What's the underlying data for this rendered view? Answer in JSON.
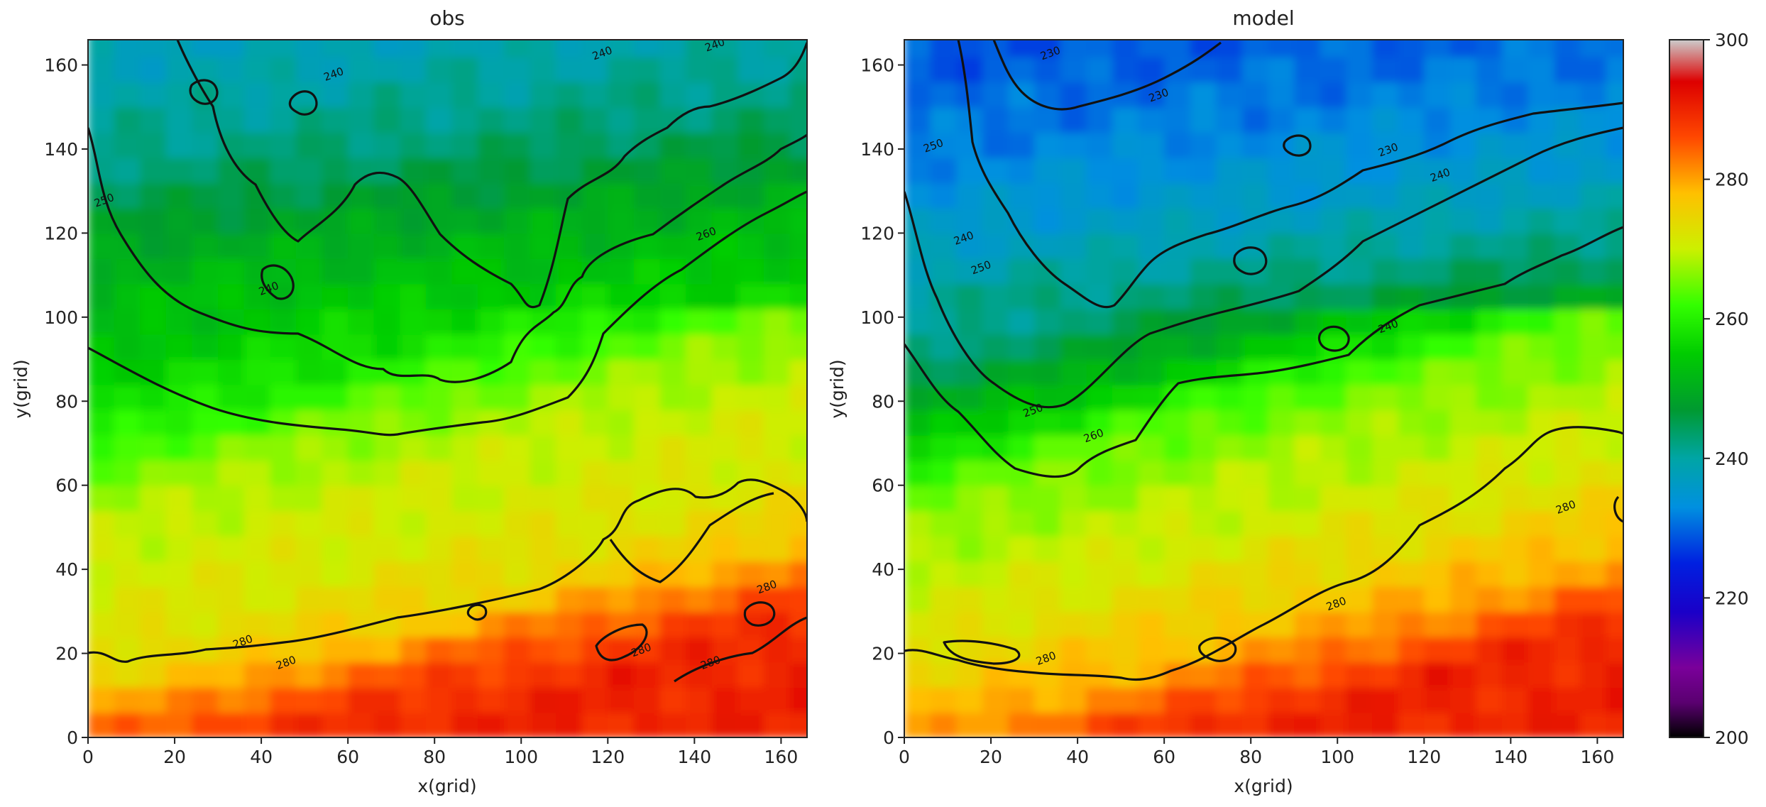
{
  "chart_data": [
    {
      "type": "heatmap",
      "title": "obs",
      "xlabel": "x(grid)",
      "ylabel": "y(grid)",
      "xlim": [
        0,
        166
      ],
      "ylim": [
        0,
        166
      ],
      "xticks": [
        0,
        20,
        40,
        60,
        80,
        100,
        120,
        140,
        160
      ],
      "yticks": [
        0,
        20,
        40,
        60,
        80,
        100,
        120,
        140,
        160
      ],
      "colormap": "nipy_spectral",
      "contour_levels": [
        240,
        250,
        260,
        280
      ],
      "contour_labels": [
        {
          "text": "240",
          "x": 57,
          "y": 157
        },
        {
          "text": "240",
          "x": 119,
          "y": 162
        },
        {
          "text": "240",
          "x": 145,
          "y": 164
        },
        {
          "text": "240",
          "x": 42,
          "y": 106
        },
        {
          "text": "250",
          "x": 4,
          "y": 127
        },
        {
          "text": "260",
          "x": 143,
          "y": 119
        },
        {
          "text": "280",
          "x": 36,
          "y": 22
        },
        {
          "text": "280",
          "x": 46,
          "y": 17
        },
        {
          "text": "280",
          "x": 128,
          "y": 20
        },
        {
          "text": "280",
          "x": 144,
          "y": 17
        },
        {
          "text": "280",
          "x": 157,
          "y": 35
        }
      ],
      "zonal_profile": [
        {
          "y": 0,
          "value": 290
        },
        {
          "y": 10,
          "value": 287
        },
        {
          "y": 18,
          "value": 282
        },
        {
          "y": 25,
          "value": 276
        },
        {
          "y": 40,
          "value": 272
        },
        {
          "y": 60,
          "value": 270
        },
        {
          "y": 75,
          "value": 266
        },
        {
          "y": 88,
          "value": 259
        },
        {
          "y": 105,
          "value": 254
        },
        {
          "y": 120,
          "value": 250
        },
        {
          "y": 140,
          "value": 243
        },
        {
          "y": 166,
          "value": 238
        }
      ]
    },
    {
      "type": "heatmap",
      "title": "model",
      "xlabel": "x(grid)",
      "ylabel": "y(grid)",
      "xlim": [
        0,
        166
      ],
      "ylim": [
        0,
        166
      ],
      "xticks": [
        0,
        20,
        40,
        60,
        80,
        100,
        120,
        140,
        160
      ],
      "yticks": [
        0,
        20,
        40,
        60,
        80,
        100,
        120,
        140,
        160
      ],
      "colormap": "nipy_spectral",
      "contour_levels": [
        230,
        240,
        250,
        260,
        280
      ],
      "contour_labels": [
        {
          "text": "230",
          "x": 34,
          "y": 162
        },
        {
          "text": "230",
          "x": 59,
          "y": 152
        },
        {
          "text": "230",
          "x": 112,
          "y": 139
        },
        {
          "text": "240",
          "x": 112,
          "y": 97
        },
        {
          "text": "240",
          "x": 124,
          "y": 133
        },
        {
          "text": "240",
          "x": 14,
          "y": 118
        },
        {
          "text": "250",
          "x": 7,
          "y": 140
        },
        {
          "text": "250",
          "x": 18,
          "y": 111
        },
        {
          "text": "250",
          "x": 30,
          "y": 77
        },
        {
          "text": "260",
          "x": 44,
          "y": 71
        },
        {
          "text": "280",
          "x": 33,
          "y": 18
        },
        {
          "text": "280",
          "x": 100,
          "y": 31
        },
        {
          "text": "280",
          "x": 153,
          "y": 54
        }
      ],
      "zonal_profile": [
        {
          "y": 0,
          "value": 290
        },
        {
          "y": 10,
          "value": 284
        },
        {
          "y": 18,
          "value": 279
        },
        {
          "y": 30,
          "value": 275
        },
        {
          "y": 45,
          "value": 271
        },
        {
          "y": 60,
          "value": 268
        },
        {
          "y": 75,
          "value": 264
        },
        {
          "y": 90,
          "value": 252
        },
        {
          "y": 105,
          "value": 243
        },
        {
          "y": 125,
          "value": 236
        },
        {
          "y": 145,
          "value": 232
        },
        {
          "y": 166,
          "value": 229
        }
      ]
    }
  ],
  "colorbar": {
    "ticks": [
      200,
      220,
      240,
      260,
      280,
      300
    ],
    "min": 200,
    "max": 300
  }
}
